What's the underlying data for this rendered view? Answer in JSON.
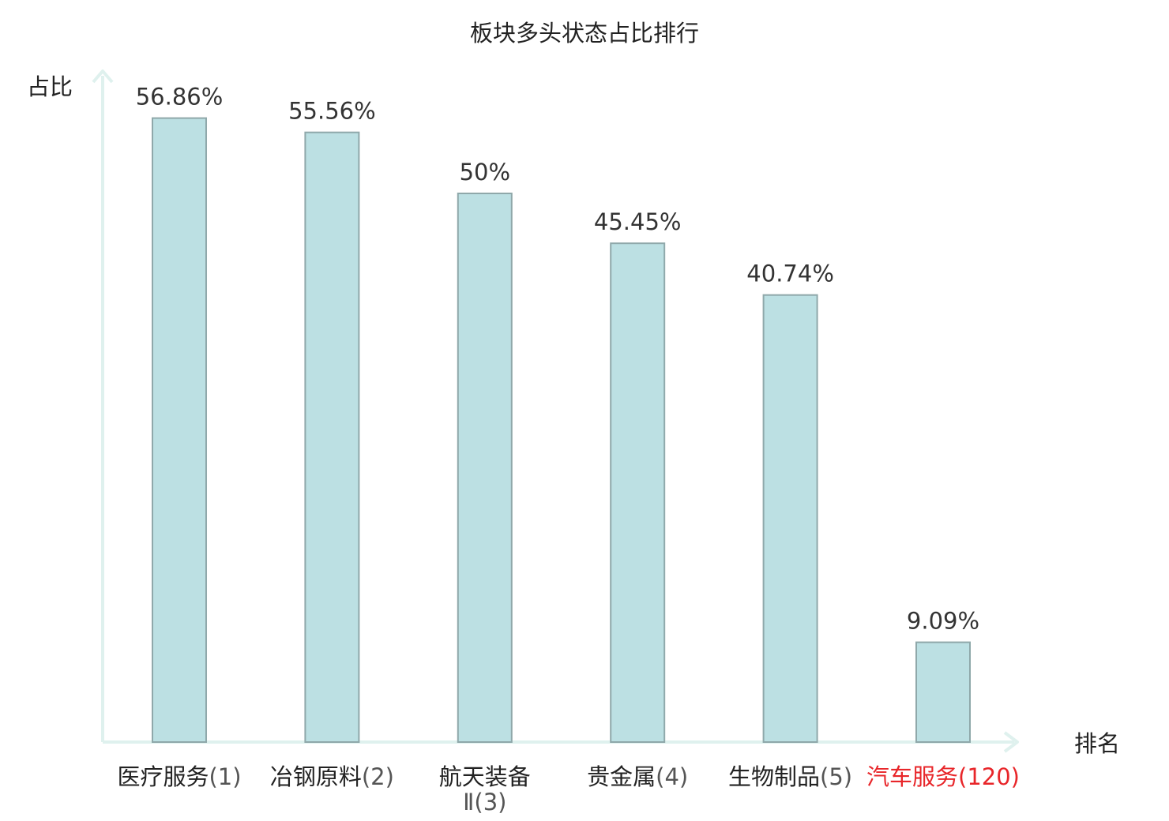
{
  "chart_data": {
    "type": "bar",
    "title": "板块多头状态占比排行",
    "ylabel": "占比",
    "xlabel": "排名",
    "ylim": [
      0,
      60
    ],
    "grid": false,
    "categories": [
      {
        "name": "医疗服务",
        "rank": "(1)",
        "highlight": false
      },
      {
        "name": "冶钢原料",
        "rank": "(2)",
        "highlight": false
      },
      {
        "name": "航天装备Ⅱ",
        "rank": "(3)",
        "highlight": false
      },
      {
        "name": "贵金属",
        "rank": "(4)",
        "highlight": false
      },
      {
        "name": "生物制品",
        "rank": "(5)",
        "highlight": false
      },
      {
        "name": "汽车服务",
        "rank": "(120)",
        "highlight": true
      }
    ],
    "values": [
      56.86,
      55.56,
      50,
      45.45,
      40.74,
      9.09
    ],
    "value_labels": [
      "56.86%",
      "55.56%",
      "50%",
      "45.45%",
      "40.74%",
      "9.09%"
    ],
    "colors": {
      "bar_fill": "#bce0e3",
      "bar_stroke": "#8fa8aa",
      "axis": "#dff1ee",
      "label_normal_name": "#222222",
      "label_normal_rank": "#555555",
      "label_highlight": "#e8262a"
    }
  }
}
